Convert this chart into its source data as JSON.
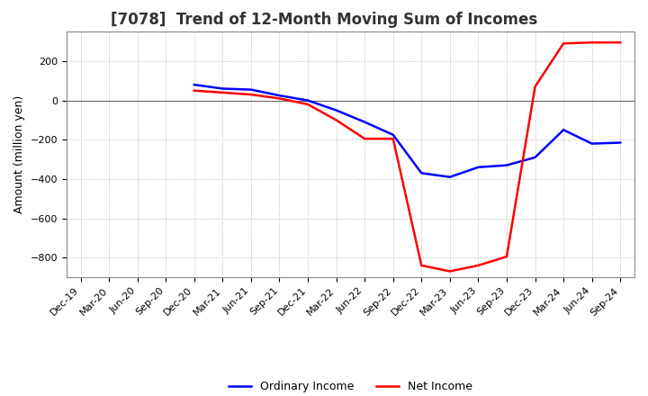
{
  "title": "[7078]  Trend of 12-Month Moving Sum of Incomes",
  "ylabel": "Amount (million yen)",
  "background_color": "#ffffff",
  "plot_background_color": "#ffffff",
  "grid_color": "#aaaaaa",
  "ylim": [
    -900,
    350
  ],
  "yticks": [
    -800,
    -600,
    -400,
    -200,
    0,
    200
  ],
  "dates": [
    "Dec-19",
    "Mar-20",
    "Jun-20",
    "Sep-20",
    "Dec-20",
    "Mar-21",
    "Jun-21",
    "Sep-21",
    "Dec-21",
    "Mar-22",
    "Jun-22",
    "Sep-22",
    "Dec-22",
    "Mar-23",
    "Jun-23",
    "Sep-23",
    "Dec-23",
    "Mar-24",
    "Jun-24",
    "Sep-24"
  ],
  "ordinary_income": {
    "values": [
      null,
      null,
      null,
      null,
      80,
      60,
      55,
      25,
      0,
      -50,
      -110,
      -175,
      -370,
      -390,
      -340,
      -330,
      -290,
      -150,
      -220,
      -215
    ],
    "color": "#0000ff",
    "linewidth": 1.8,
    "label": "Ordinary Income"
  },
  "net_income": {
    "values": [
      null,
      null,
      null,
      null,
      50,
      40,
      30,
      10,
      -20,
      -100,
      -195,
      -195,
      -840,
      -870,
      -840,
      -795,
      70,
      290,
      295,
      295
    ],
    "color": "#ff0000",
    "linewidth": 1.8,
    "label": "Net Income"
  },
  "title_color": "#333333",
  "title_fontsize": 12,
  "tick_fontsize": 8,
  "ylabel_fontsize": 9,
  "legend_fontsize": 9
}
